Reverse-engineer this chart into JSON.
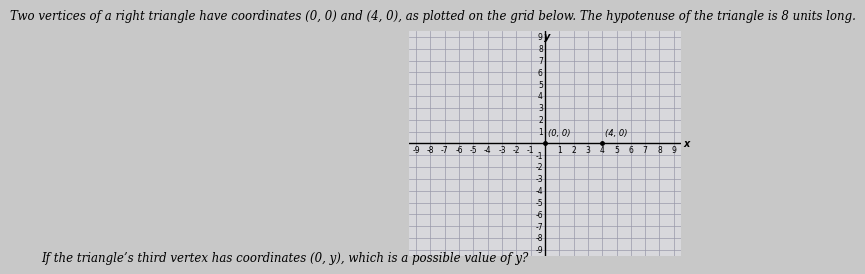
{
  "title_text": "Two vertices of a right triangle have coordinates (0, 0) and (4, 0), as plotted on the grid below. The hypotenuse of the triangle is 8 units long.",
  "bottom_text": "If the triangle’s third vertex has coordinates (0, y), which is a possible value of y?",
  "xlim": [
    -9.5,
    9.5
  ],
  "ylim": [
    -9.5,
    9.5
  ],
  "x_label": "x",
  "y_label": "y",
  "point1": [
    0,
    0
  ],
  "point1_label": "(0, 0)",
  "point2": [
    4,
    0
  ],
  "point2_label": "(4, 0)",
  "grid_color": "#9999aa",
  "axis_color": "#000000",
  "bg_color": "#c8c8c8",
  "plot_bg_color": "#d8d8dc",
  "title_fontsize": 8.5,
  "bottom_fontsize": 8.5,
  "tick_fontsize": 5.5
}
